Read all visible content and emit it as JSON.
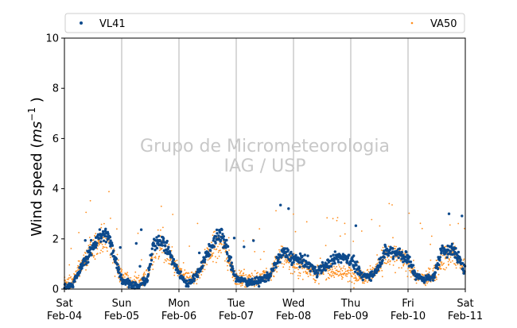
{
  "chart_data": {
    "type": "scatter",
    "title": "",
    "xlabel": "",
    "ylabel_text": "Wind speed (",
    "ylabel_unit_base": "ms",
    "ylabel_unit_exp": "−1",
    "ylabel_close": " )",
    "ylim": [
      0,
      10
    ],
    "yticks": [
      "0",
      "2",
      "4",
      "6",
      "8",
      "10"
    ],
    "xlim_days": [
      0,
      7
    ],
    "xticks": [
      {
        "day": "Sat",
        "date": "Feb-04"
      },
      {
        "day": "Sun",
        "date": "Feb-05"
      },
      {
        "day": "Mon",
        "date": "Feb-06"
      },
      {
        "day": "Tue",
        "date": "Feb-07"
      },
      {
        "day": "Wed",
        "date": "Feb-08"
      },
      {
        "day": "Thu",
        "date": "Feb-09"
      },
      {
        "day": "Fri",
        "date": "Feb-10"
      },
      {
        "day": "Sat",
        "date": "Feb-11"
      }
    ],
    "grid": "vertical",
    "legend_position": "top",
    "watermark": [
      "Grupo de Micrometeorologia",
      "IAG / USP"
    ],
    "series": [
      {
        "name": "VL41",
        "color": "#0d4a8c",
        "marker": "dot",
        "envelope": {
          "x": [
            0.0,
            0.15,
            0.3,
            0.45,
            0.6,
            0.75,
            0.85,
            1.0,
            1.15,
            1.3,
            1.45,
            1.55,
            1.65,
            1.8,
            2.0,
            2.15,
            2.3,
            2.45,
            2.6,
            2.75,
            3.0,
            3.2,
            3.4,
            3.6,
            3.8,
            4.0,
            4.2,
            4.4,
            4.6,
            4.8,
            5.0,
            5.2,
            5.4,
            5.6,
            5.8,
            6.0,
            6.15,
            6.3,
            6.45,
            6.6,
            6.8,
            7.0
          ],
          "y": [
            0.1,
            0.2,
            0.9,
            1.5,
            2.1,
            2.2,
            1.5,
            0.4,
            0.2,
            0.1,
            0.4,
            1.7,
            2.0,
            1.6,
            0.6,
            0.2,
            0.5,
            1.2,
            1.9,
            2.2,
            0.4,
            0.3,
            0.3,
            0.6,
            1.5,
            1.2,
            1.1,
            0.7,
            1.0,
            1.3,
            1.2,
            0.5,
            0.6,
            1.5,
            1.5,
            1.2,
            0.5,
            0.4,
            0.5,
            1.6,
            1.5,
            0.8
          ]
        }
      },
      {
        "name": "VA50",
        "color": "#ff8c1a",
        "marker": "dot",
        "envelope": {
          "x": [
            0.0,
            0.15,
            0.3,
            0.45,
            0.6,
            0.75,
            0.85,
            1.0,
            1.15,
            1.3,
            1.45,
            1.55,
            1.65,
            1.8,
            2.0,
            2.15,
            2.3,
            2.45,
            2.6,
            2.75,
            3.0,
            3.2,
            3.4,
            3.6,
            3.8,
            4.0,
            4.2,
            4.4,
            4.6,
            4.8,
            5.0,
            5.2,
            5.4,
            5.6,
            5.8,
            6.0,
            6.15,
            6.3,
            6.45,
            6.6,
            6.8,
            7.0
          ],
          "y": [
            0.2,
            0.3,
            1.0,
            1.4,
            1.9,
            2.0,
            1.4,
            0.5,
            0.3,
            0.3,
            0.5,
            1.4,
            1.8,
            1.4,
            0.7,
            0.4,
            0.5,
            1.1,
            1.7,
            1.8,
            0.4,
            0.4,
            0.4,
            0.6,
            1.4,
            1.0,
            0.9,
            0.6,
            0.8,
            0.7,
            0.6,
            0.5,
            0.7,
            1.3,
            1.3,
            1.0,
            0.5,
            0.4,
            0.6,
            1.3,
            1.3,
            0.8
          ]
        }
      }
    ]
  }
}
